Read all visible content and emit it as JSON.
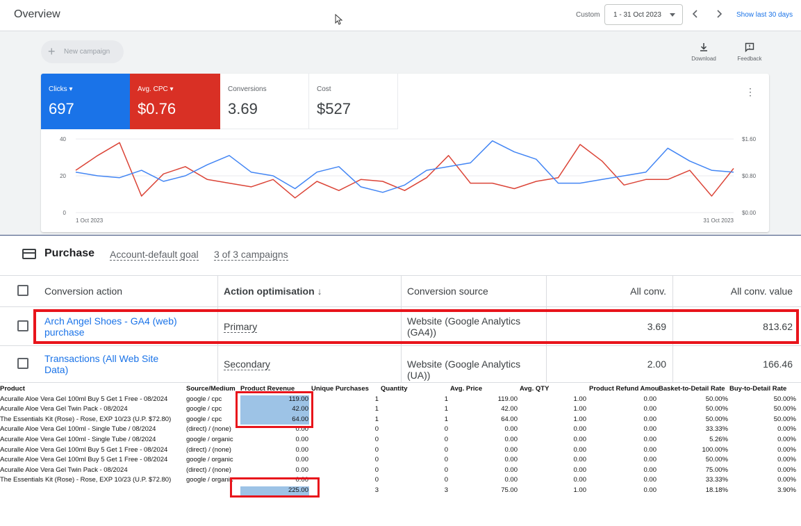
{
  "header": {
    "title": "Overview",
    "custom_label": "Custom",
    "date_range": "1 - 31 Oct 2023",
    "prev": "‹",
    "next": "›",
    "show_last": "Show last 30 days"
  },
  "toolbar": {
    "new_campaign": "New campaign",
    "download": "Download",
    "feedback": "Feedback"
  },
  "metrics": [
    {
      "name": "Clicks",
      "value": "697",
      "color": "#1a73e8"
    },
    {
      "name": "Avg. CPC",
      "value": "$0.76",
      "color": "#d93025"
    },
    {
      "name": "Conversions",
      "value": "3.69"
    },
    {
      "name": "Cost",
      "value": "$527"
    }
  ],
  "chart_data": {
    "type": "line",
    "x_start_label": "1 Oct 2023",
    "x_end_label": "31 Oct 2023",
    "left_ticks": [
      "40",
      "20",
      "0"
    ],
    "right_ticks": [
      "$1.60",
      "$0.80",
      "$0.00"
    ],
    "left_ylim": [
      0,
      40
    ],
    "right_ylim": [
      0,
      1.6
    ],
    "series": [
      {
        "name": "Clicks",
        "color": "#4285f4",
        "axis": "left",
        "values": [
          22,
          20,
          19,
          23,
          17,
          20,
          26,
          31,
          22,
          20,
          13,
          22,
          25,
          14,
          11,
          15,
          23,
          25,
          27,
          39,
          33,
          29,
          16,
          16,
          18,
          20,
          22,
          35,
          28,
          23,
          22
        ]
      },
      {
        "name": "Avg. CPC",
        "color": "#db4437",
        "axis": "left",
        "values": [
          23,
          31,
          38,
          9,
          21,
          25,
          18,
          16,
          14,
          18,
          8,
          17,
          12,
          18,
          17,
          12,
          19,
          31,
          16,
          16,
          13,
          17,
          19,
          37,
          28,
          15,
          18,
          18,
          23,
          9,
          24
        ]
      }
    ]
  },
  "purchase": {
    "title": "Purchase",
    "goal_link": "Account-default goal",
    "campaigns_link": "3 of 3 campaigns",
    "columns": [
      "Conversion action",
      "Action optimisation",
      "Conversion source",
      "All conv.",
      "All conv. value"
    ],
    "sort_icon": "↓",
    "rows": [
      {
        "action_line1": "Arch Angel Shoes - GA4 (web)",
        "action_line2": "purchase",
        "optimisation": "Primary",
        "source_line1": "Website (Google Analytics",
        "source_line2": "(GA4))",
        "all_conv": "3.69",
        "all_conv_value": "813.62"
      },
      {
        "action_line1": "Transactions (All Web Site",
        "action_line2": "Data)",
        "optimisation": "Secondary",
        "source_line1": "Website (Google Analytics (UA))",
        "source_line2": "",
        "all_conv": "2.00",
        "all_conv_value": "166.46"
      }
    ]
  },
  "sheet": {
    "headers": [
      "Product",
      "Source/Medium",
      "Product Revenue",
      "Unique Purchases",
      "Quantity",
      "Avg. Price",
      "Avg. QTY",
      "Product Refund Amount",
      "Basket-to-Detail Rate",
      "Buy-to-Detail Rate"
    ],
    "rows": [
      [
        "Acuralle Aloe Vera Gel 100ml Buy 5 Get 1 Free - 08/2024",
        "google / cpc",
        "119.00",
        "1",
        "1",
        "119.00",
        "1.00",
        "0.00",
        "50.00%",
        "50.00%"
      ],
      [
        "Acuralle Aloe Vera Gel Twin Pack - 08/2024",
        "google / cpc",
        "42.00",
        "1",
        "1",
        "42.00",
        "1.00",
        "0.00",
        "50.00%",
        "50.00%"
      ],
      [
        "The Essentials Kit (Rose) - Rose, EXP 10/23 (U.P. $72.80)",
        "google / cpc",
        "64.00",
        "1",
        "1",
        "64.00",
        "1.00",
        "0.00",
        "50.00%",
        "50.00%"
      ],
      [
        "Acuralle Aloe Vera Gel 100ml - Single Tube / 08/2024",
        "(direct) / (none)",
        "0.00",
        "0",
        "0",
        "0.00",
        "0.00",
        "0.00",
        "33.33%",
        "0.00%"
      ],
      [
        "Acuralle Aloe Vera Gel 100ml - Single Tube / 08/2024",
        "google / organic",
        "0.00",
        "0",
        "0",
        "0.00",
        "0.00",
        "0.00",
        "5.26%",
        "0.00%"
      ],
      [
        "Acuralle Aloe Vera Gel 100ml Buy 5 Get 1 Free - 08/2024",
        "(direct) / (none)",
        "0.00",
        "0",
        "0",
        "0.00",
        "0.00",
        "0.00",
        "100.00%",
        "0.00%"
      ],
      [
        "Acuralle Aloe Vera Gel 100ml Buy 5 Get 1 Free - 08/2024",
        "google / organic",
        "0.00",
        "0",
        "0",
        "0.00",
        "0.00",
        "0.00",
        "50.00%",
        "0.00%"
      ],
      [
        "Acuralle Aloe Vera Gel Twin Pack - 08/2024",
        "(direct) / (none)",
        "0.00",
        "0",
        "0",
        "0.00",
        "0.00",
        "0.00",
        "75.00%",
        "0.00%"
      ],
      [
        "The Essentials Kit (Rose) - Rose, EXP 10/23 (U.P. $72.80)",
        "google / organic",
        "0.00",
        "0",
        "0",
        "0.00",
        "0.00",
        "0.00",
        "33.33%",
        "0.00%"
      ],
      [
        "",
        "",
        "225.00",
        "3",
        "3",
        "75.00",
        "1.00",
        "0.00",
        "18.18%",
        "3.90%"
      ]
    ]
  }
}
